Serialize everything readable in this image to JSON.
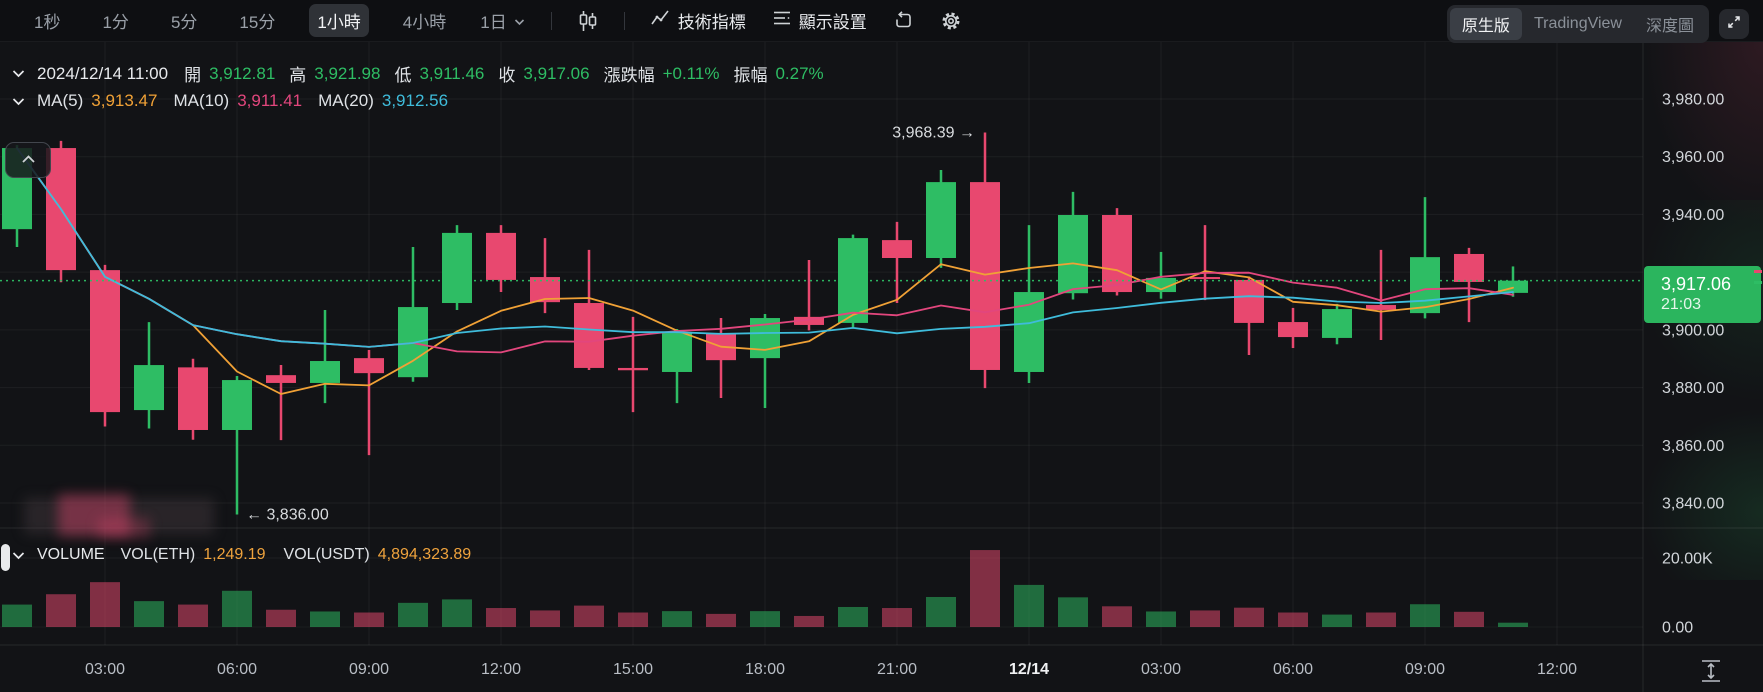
{
  "toolbar": {
    "intervals": [
      {
        "label": "1秒",
        "active": false
      },
      {
        "label": "1分",
        "active": false
      },
      {
        "label": "5分",
        "active": false
      },
      {
        "label": "15分",
        "active": false
      },
      {
        "label": "1小時",
        "active": true
      },
      {
        "label": "4小時",
        "active": false
      },
      {
        "label": "1日",
        "active": false
      }
    ],
    "indicator_label": "技術指標",
    "display_label": "顯示設置",
    "view_modes": [
      "原生版",
      "TradingView",
      "深度圖"
    ],
    "active_view": "原生版"
  },
  "info_bar": {
    "datetime": "2024/12/14 11:00",
    "open_label": "開",
    "open": "3,912.81",
    "high_label": "高",
    "high": "3,921.98",
    "low_label": "低",
    "low": "3,911.46",
    "close_label": "收",
    "close": "3,917.06",
    "change_label": "漲跌幅",
    "change": "+0.11%",
    "amplitude_label": "振幅",
    "amplitude": "0.27%"
  },
  "ma_bar": {
    "ma5_label": "MA(5)",
    "ma5": "3,913.47",
    "ma10_label": "MA(10)",
    "ma10": "3,911.41",
    "ma20_label": "MA(20)",
    "ma20": "3,912.56"
  },
  "volume_bar": {
    "title": "VOLUME",
    "vol_eth_label": "VOL(ETH)",
    "vol_eth": "1,249.19",
    "vol_usdt_label": "VOL(USDT)",
    "vol_usdt": "4,894,323.89"
  },
  "price_badge": {
    "price": "3,917.06",
    "time": "21:03"
  },
  "annotations": {
    "high": "3,968.39",
    "low": "3,836.00"
  },
  "colors": {
    "up": "#2ebd64",
    "down": "#e8486f",
    "ma5": "#f0a136",
    "ma10": "#e2467d",
    "ma20": "#3fbcdb",
    "badge": "#2bb55e",
    "grid": "rgba(255,255,255,0.05)",
    "axis_text": "#d2d6da",
    "time_text": "#b9bec5"
  },
  "chart_data": {
    "type": "candlestick+volume",
    "interval": "1小時",
    "last_price": 3917.06,
    "ylim": [
      3833,
      3987
    ],
    "volume_ylim": [
      0,
      24000
    ],
    "times": [
      "12/13 01:00",
      "02:00",
      "03:00",
      "04:00",
      "05:00",
      "06:00",
      "07:00",
      "08:00",
      "09:00",
      "10:00",
      "11:00",
      "12:00",
      "13:00",
      "14:00",
      "15:00",
      "16:00",
      "17:00",
      "18:00",
      "19:00",
      "20:00",
      "21:00",
      "22:00",
      "23:00",
      "12/14 00:00",
      "01:00",
      "02:00",
      "03:00",
      "04:00",
      "05:00",
      "06:00",
      "07:00",
      "08:00",
      "09:00",
      "10:00",
      "11:00"
    ],
    "candles": [
      [
        3934.9,
        3964.0,
        3928.7,
        3963.0
      ],
      [
        3963.0,
        3965.5,
        3916.5,
        3920.7
      ],
      [
        3920.7,
        3922.5,
        3866.5,
        3871.5
      ],
      [
        3872.2,
        3902.7,
        3865.8,
        3887.8
      ],
      [
        3887.0,
        3890.0,
        3861.9,
        3865.3
      ],
      [
        3865.3,
        3884.0,
        3836.0,
        3882.6
      ],
      [
        3884.3,
        3887.8,
        3861.8,
        3881.6
      ],
      [
        3881.6,
        3906.9,
        3874.6,
        3889.2
      ],
      [
        3890.2,
        3893.0,
        3856.6,
        3885.0
      ],
      [
        3883.6,
        3928.7,
        3882.0,
        3907.9
      ],
      [
        3909.3,
        3936.3,
        3906.9,
        3933.6
      ],
      [
        3933.6,
        3936.3,
        3913.1,
        3917.3
      ],
      [
        3918.3,
        3931.8,
        3905.8,
        3909.6
      ],
      [
        3909.3,
        3927.7,
        3886.1,
        3886.8
      ],
      [
        3886.8,
        3904.5,
        3871.5,
        3886.0
      ],
      [
        3885.4,
        3900.3,
        3874.6,
        3898.9
      ],
      [
        3898.9,
        3904.1,
        3876.4,
        3889.5
      ],
      [
        3890.2,
        3905.5,
        3872.9,
        3904.1
      ],
      [
        3904.5,
        3924.2,
        3899.8,
        3901.7
      ],
      [
        3902.4,
        3933.0,
        3901.0,
        3931.8
      ],
      [
        3931.1,
        3937.4,
        3909.3,
        3924.9
      ],
      [
        3924.9,
        3955.4,
        3921.5,
        3951.2
      ],
      [
        3951.2,
        3968.39,
        3879.8,
        3886.1
      ],
      [
        3885.4,
        3936.3,
        3881.6,
        3913.1
      ],
      [
        3912.7,
        3947.8,
        3910.5,
        3939.8
      ],
      [
        3939.8,
        3942.2,
        3911.9,
        3913.1
      ],
      [
        3913.1,
        3927.0,
        3910.8,
        3918.0
      ],
      [
        3918.3,
        3936.3,
        3910.3,
        3917.6
      ],
      [
        3917.3,
        3918.5,
        3891.3,
        3902.4
      ],
      [
        3902.7,
        3907.6,
        3893.7,
        3897.5
      ],
      [
        3897.2,
        3909.0,
        3895.0,
        3907.2
      ],
      [
        3908.6,
        3927.7,
        3896.5,
        3906.9
      ],
      [
        3905.8,
        3946.0,
        3904.0,
        3925.2
      ],
      [
        3926.3,
        3928.4,
        3902.7,
        3916.6
      ],
      [
        3912.81,
        3921.98,
        3911.46,
        3917.06
      ]
    ],
    "volumes": [
      6500,
      9500,
      13000,
      7500,
      6500,
      10500,
      5000,
      4500,
      4200,
      7000,
      8000,
      5500,
      4800,
      6200,
      4200,
      4600,
      3800,
      4600,
      3200,
      5800,
      5500,
      8700,
      22300,
      12200,
      8600,
      6000,
      4500,
      4800,
      5600,
      4200,
      3600,
      4200,
      6600,
      4400,
      1249.19
    ],
    "ma_windows": [
      5,
      10,
      20
    ],
    "price_ticks": [
      {
        "p": 3980,
        "label": "3,980.00"
      },
      {
        "p": 3960,
        "label": "3,960.00"
      },
      {
        "p": 3940,
        "label": "3,940.00"
      },
      {
        "p": 3920,
        "label": ""
      },
      {
        "p": 3900,
        "label": "3,900.00"
      },
      {
        "p": 3880,
        "label": "3,880.00"
      },
      {
        "p": 3860,
        "label": "3,860.00"
      },
      {
        "p": 3840,
        "label": "3,840.00"
      }
    ],
    "volume_ticks": [
      {
        "v": 20000,
        "label": "20.00K"
      },
      {
        "v": 0,
        "label": "0.00"
      }
    ],
    "time_ticks": [
      {
        "i": 2,
        "label": "03:00"
      },
      {
        "i": 5,
        "label": "06:00"
      },
      {
        "i": 8,
        "label": "09:00"
      },
      {
        "i": 11,
        "label": "12:00"
      },
      {
        "i": 14,
        "label": "15:00"
      },
      {
        "i": 17,
        "label": "18:00"
      },
      {
        "i": 20,
        "label": "21:00"
      },
      {
        "i": 23,
        "label": "12/14",
        "strong": true
      },
      {
        "i": 26,
        "label": "03:00"
      },
      {
        "i": 29,
        "label": "06:00"
      },
      {
        "i": 32,
        "label": "09:00"
      },
      {
        "i": 35,
        "label": "12:00"
      }
    ],
    "high_annotation": {
      "index": 22,
      "price": 3968.39
    },
    "low_annotation": {
      "index": 5,
      "price": 3836.0
    }
  }
}
